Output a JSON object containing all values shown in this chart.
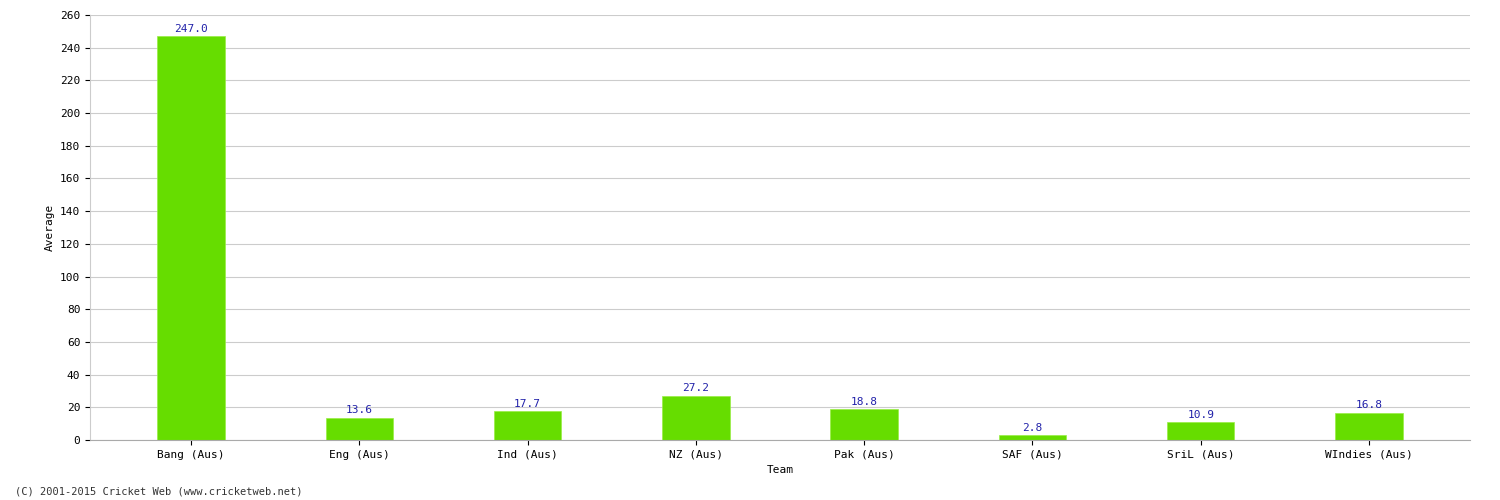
{
  "categories": [
    "Bang (Aus)",
    "Eng (Aus)",
    "Ind (Aus)",
    "NZ (Aus)",
    "Pak (Aus)",
    "SAF (Aus)",
    "SriL (Aus)",
    "WIndies (Aus)"
  ],
  "values": [
    247.0,
    13.6,
    17.7,
    27.2,
    18.8,
    2.8,
    10.9,
    16.8
  ],
  "bar_color": "#66dd00",
  "bar_edge_color": "#99ee44",
  "label_color": "#2222aa",
  "xlabel": "Team",
  "ylabel": "Average",
  "ylim": [
    0,
    260
  ],
  "yticks": [
    0,
    20,
    40,
    60,
    80,
    100,
    120,
    140,
    160,
    180,
    200,
    220,
    240,
    260
  ],
  "background_color": "#ffffff",
  "grid_color": "#cccccc",
  "label_fontsize": 8,
  "axis_fontsize": 8,
  "bar_width": 0.4,
  "footer_text": "(C) 2001-2015 Cricket Web (www.cricketweb.net)"
}
